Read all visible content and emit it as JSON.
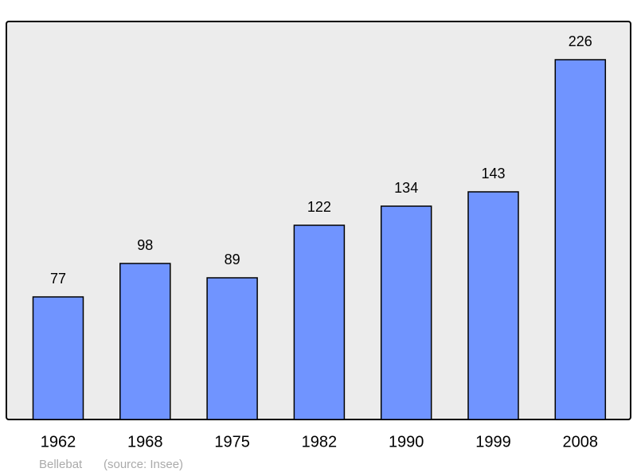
{
  "chart_data": {
    "type": "bar",
    "categories": [
      "1962",
      "1968",
      "1975",
      "1982",
      "1990",
      "1999",
      "2008"
    ],
    "values": [
      77,
      98,
      89,
      122,
      134,
      143,
      226
    ],
    "color": "#7094ff",
    "ylim": [
      0,
      250
    ],
    "place": "Bellebat",
    "source": "(source: Insee)"
  }
}
